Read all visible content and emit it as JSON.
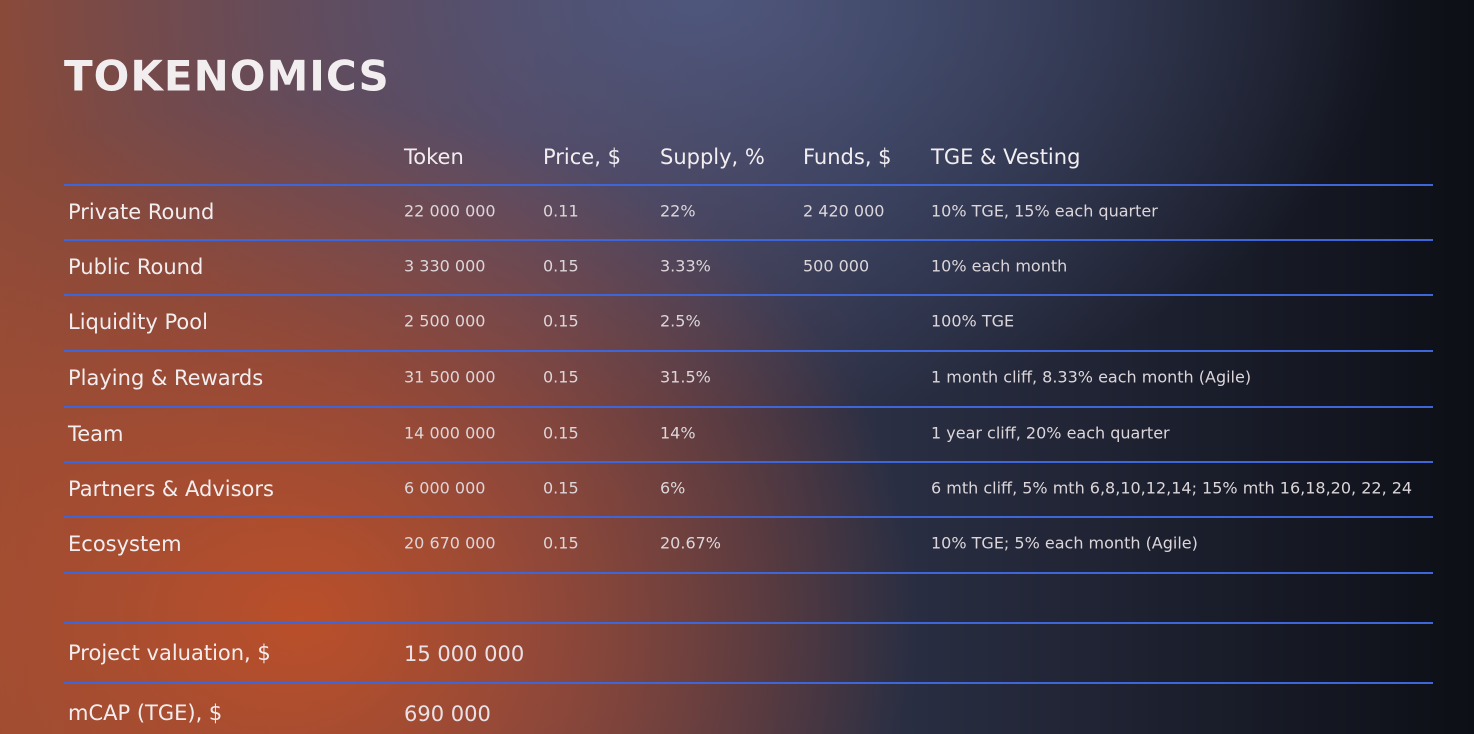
{
  "title": "TOKENOMICS",
  "table": {
    "headers": {
      "token": "Token",
      "price": "Price, $",
      "supply": "Supply, %",
      "funds": "Funds, $",
      "vesting": "TGE & Vesting"
    },
    "rows": [
      {
        "label": "Private Round",
        "token": "22 000 000",
        "price": "0.11",
        "supply": "22%",
        "funds": "2 420 000",
        "vesting": "10% TGE, 15% each quarter"
      },
      {
        "label": "Public Round",
        "token": "3 330 000",
        "price": "0.15",
        "supply": "3.33%",
        "funds": "500 000",
        "vesting": "10% each month"
      },
      {
        "label": "Liquidity Pool",
        "token": "2 500 000",
        "price": "0.15",
        "supply": "2.5%",
        "vesting": "100% TGE"
      },
      {
        "label": "Playing & Rewards",
        "token": "31 500 000",
        "price": "0.15",
        "supply": "31.5%",
        "vesting": "1 month cliff, 8.33% each month (Agile)"
      },
      {
        "label": "Team",
        "token": "14 000 000",
        "price": "0.15",
        "supply": "14%",
        "vesting": "1 year cliff, 20% each quarter"
      },
      {
        "label": "Partners & Advisors",
        "token": "6 000 000",
        "price": "0.15",
        "supply": "6%",
        "vesting": "6  mth cliff, 5% mth 6,8,10,12,14; 15% mth 16,18,20, 22, 24"
      },
      {
        "label": "Ecosystem",
        "token": "20 670 000",
        "price": "0.15",
        "supply": "20.67%",
        "vesting": "10% TGE; 5% each month (Agile)"
      }
    ]
  },
  "summary": [
    {
      "label": "Project valuation, $",
      "value": "15 000 000"
    },
    {
      "label": "mCAP (TGE), $",
      "value": "690 000"
    }
  ]
}
